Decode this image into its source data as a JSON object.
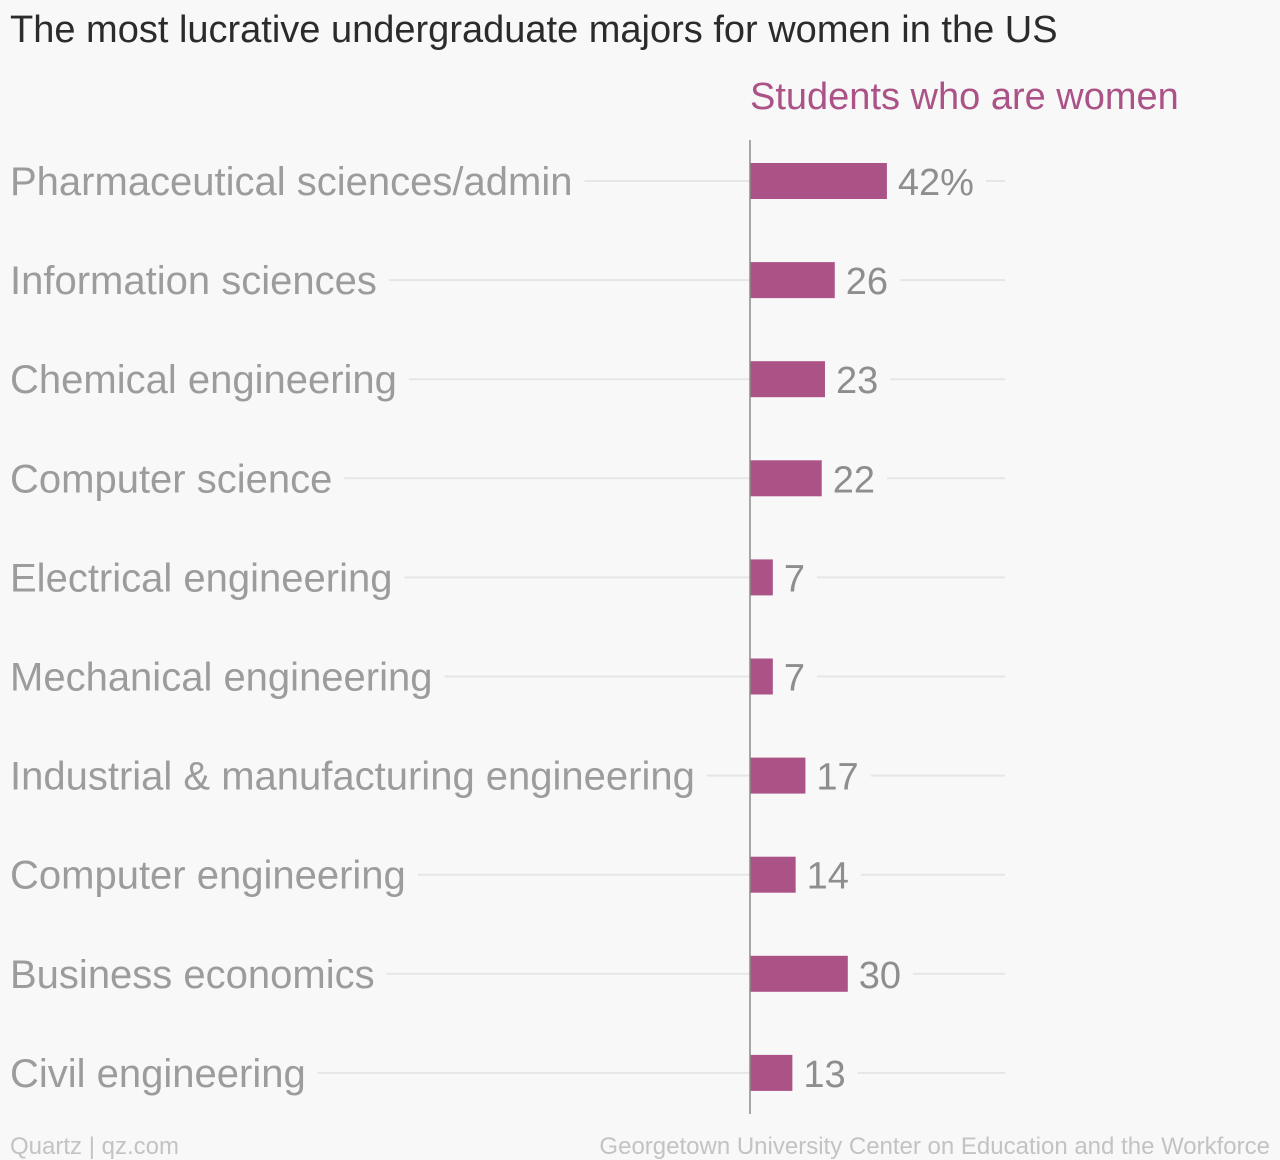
{
  "colors": {
    "background": "#f8f8f8",
    "bar": "#ab5387",
    "series_label": "#ab5387",
    "title": "#2b2b2b",
    "category_text": "#9c9c9c",
    "value_text": "#8e8e8e",
    "gridline": "#e6e6e6",
    "axis": "#8a8a8a",
    "footer_text": "#c3c3c3"
  },
  "footer": {
    "left": "Quartz | qz.com",
    "right": "Georgetown University Center on Education and the Workforce"
  },
  "chart_data": {
    "type": "bar",
    "orientation": "horizontal",
    "title": "The most lucrative undergraduate majors for women in the US",
    "categories": [
      "Pharmaceutical sciences/admin",
      "Information sciences",
      "Chemical engineering",
      "Computer science",
      "Electrical engineering",
      "Mechanical engineering",
      "Industrial & manufacturing engineering",
      "Computer engineering",
      "Business economics",
      "Civil engineering"
    ],
    "series": [
      {
        "name": "Students who are women",
        "values": [
          42,
          26,
          23,
          22,
          7,
          7,
          17,
          14,
          30,
          13
        ],
        "value_labels": [
          "42%",
          "26",
          "23",
          "22",
          "7",
          "7",
          "17",
          "14",
          "30",
          "13"
        ]
      }
    ],
    "xlim": [
      0,
      78
    ],
    "grid": true,
    "legend": "top"
  }
}
